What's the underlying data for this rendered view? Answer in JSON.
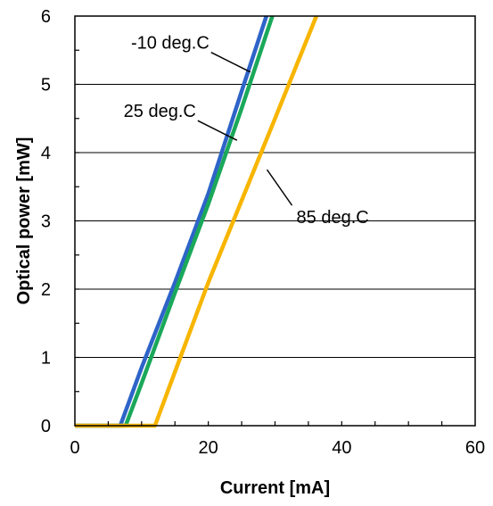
{
  "chart_data": {
    "type": "line",
    "xlabel": "Current [mA]",
    "ylabel": "Optical power [mW]",
    "xlim": [
      0,
      60
    ],
    "ylim": [
      0,
      6
    ],
    "xticks": [
      0,
      20,
      40,
      60
    ],
    "yticks": [
      0,
      1,
      2,
      3,
      4,
      5,
      6
    ],
    "grid": "horizontal",
    "series": [
      {
        "name": "-10 deg.C",
        "color": "#2e64c8",
        "x": [
          0,
          6.8,
          10,
          15,
          20,
          25,
          28.7
        ],
        "y": [
          0,
          0,
          0.85,
          2.1,
          3.4,
          4.9,
          6
        ]
      },
      {
        "name": "25 deg.C",
        "color": "#1aa85a",
        "x": [
          0,
          7.6,
          10,
          15,
          20,
          25,
          29.6
        ],
        "y": [
          0,
          0,
          0.62,
          1.95,
          3.25,
          4.65,
          6
        ]
      },
      {
        "name": "85 deg.C",
        "color": "#f7b500",
        "x": [
          0,
          12,
          16,
          20,
          25,
          30,
          36.2
        ],
        "y": [
          0,
          0,
          1.05,
          2.1,
          3.3,
          4.5,
          6
        ]
      }
    ],
    "annotations": [
      {
        "text": "-10 deg.C",
        "series": 0,
        "x": 26.3,
        "y": 5.18,
        "side": "left"
      },
      {
        "text": "25 deg.C",
        "series": 1,
        "x": 24.3,
        "y": 4.18,
        "side": "left"
      },
      {
        "text": "85 deg.C",
        "series": 2,
        "x": 28.8,
        "y": 3.75,
        "side": "right"
      }
    ]
  }
}
